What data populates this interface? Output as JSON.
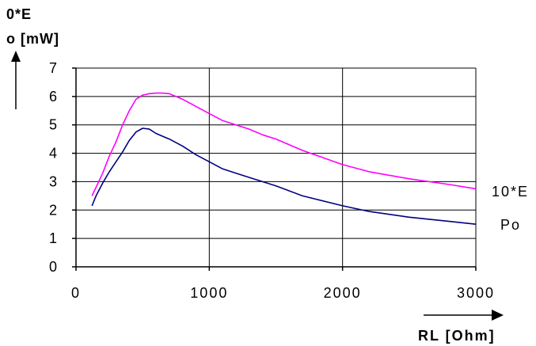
{
  "chart_data": {
    "type": "line",
    "ylabel_line1": "0*E",
    "ylabel_line2": "o [mW]",
    "xlabel": "RL [Ohm]",
    "xlim": [
      0,
      3000
    ],
    "ylim": [
      0,
      7
    ],
    "xticks": [
      "0",
      "1000",
      "2000",
      "3000"
    ],
    "yticks": [
      "0",
      "1",
      "2",
      "3",
      "4",
      "5",
      "6",
      "7"
    ],
    "grid": true,
    "series": [
      {
        "name": "10*E",
        "color": "#ff00ff",
        "x": [
          120,
          150,
          200,
          250,
          300,
          350,
          400,
          450,
          500,
          550,
          600,
          650,
          700,
          750,
          800,
          900,
          1000,
          1100,
          1200,
          1300,
          1400,
          1500,
          1700,
          2000,
          2200,
          2500,
          2800,
          3000
        ],
        "y": [
          2.5,
          2.8,
          3.3,
          3.9,
          4.4,
          5.0,
          5.5,
          5.9,
          6.05,
          6.1,
          6.12,
          6.12,
          6.1,
          6.0,
          5.9,
          5.65,
          5.4,
          5.15,
          5.0,
          4.85,
          4.65,
          4.5,
          4.1,
          3.6,
          3.35,
          3.1,
          2.9,
          2.75
        ]
      },
      {
        "name": "Po",
        "color": "#000080",
        "x": [
          120,
          150,
          200,
          250,
          300,
          350,
          400,
          450,
          500,
          550,
          600,
          650,
          700,
          800,
          900,
          1000,
          1100,
          1200,
          1300,
          1500,
          1700,
          2000,
          2200,
          2500,
          2800,
          3000
        ],
        "y": [
          2.15,
          2.5,
          2.95,
          3.35,
          3.7,
          4.05,
          4.45,
          4.75,
          4.88,
          4.85,
          4.7,
          4.6,
          4.5,
          4.25,
          3.95,
          3.7,
          3.45,
          3.3,
          3.15,
          2.85,
          2.5,
          2.15,
          1.95,
          1.75,
          1.6,
          1.5
        ]
      }
    ]
  }
}
